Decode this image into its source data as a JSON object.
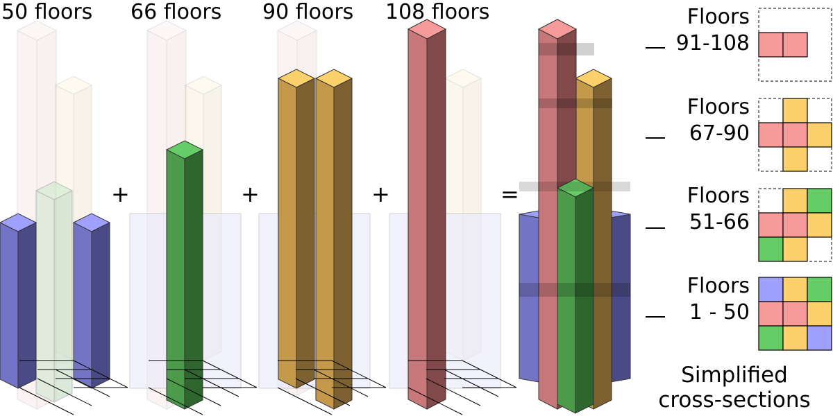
{
  "columns": [
    {
      "title": "50 floors"
    },
    {
      "title": "66 floors"
    },
    {
      "title": "90 floors"
    },
    {
      "title": "108 floors"
    }
  ],
  "operators": {
    "plus": "+",
    "equals": "="
  },
  "sections": [
    {
      "label_top": "Floors",
      "label_bottom": "91-108",
      "grid": [
        [
          "",
          "",
          ""
        ],
        [
          "r",
          "r",
          ""
        ],
        [
          "",
          "",
          ""
        ]
      ]
    },
    {
      "label_top": "Floors",
      "label_bottom": "67-90",
      "grid": [
        [
          "",
          "y",
          ""
        ],
        [
          "r",
          "r",
          "y"
        ],
        [
          "",
          "y",
          ""
        ]
      ]
    },
    {
      "label_top": "Floors",
      "label_bottom": "51-66",
      "grid": [
        [
          "",
          "y",
          "g"
        ],
        [
          "r",
          "r",
          "y"
        ],
        [
          "g",
          "y",
          ""
        ]
      ]
    },
    {
      "label_top": "Floors",
      "label_bottom": "1 - 50",
      "grid": [
        [
          "b",
          "y",
          "g"
        ],
        [
          "r",
          "r",
          "y"
        ],
        [
          "g",
          "y",
          "b"
        ]
      ]
    }
  ],
  "caption_line1": "Simplified",
  "caption_line2": "cross-sections",
  "colors": {
    "r": "#f79a9a",
    "y": "#fcd16b",
    "g": "#66cc66",
    "b": "#a0a0ff",
    "red_face": "#c8787a",
    "red_side": "#82494b",
    "yellow_face": "#c49a4a",
    "yellow_side": "#7e6130",
    "green_face": "#4b9b4b",
    "green_side": "#2e662e",
    "blue_face": "#7474c6",
    "blue_side": "#4a4a86"
  }
}
